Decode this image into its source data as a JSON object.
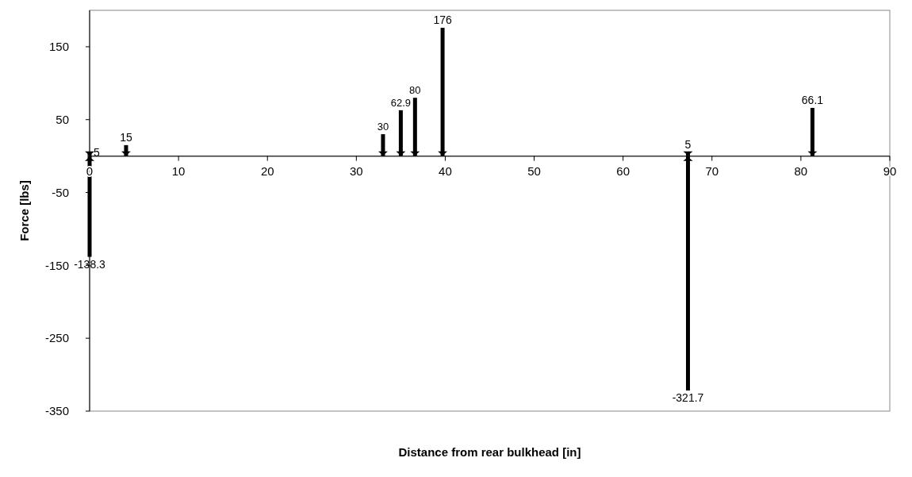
{
  "chart_data": {
    "type": "bar",
    "xlabel": "Distance from rear bulkhead [in]",
    "ylabel": "Force [lbs]",
    "series": [
      {
        "color": "#000000",
        "x": [
          0,
          4.1,
          33,
          35,
          36.6,
          39.7,
          67.3,
          81.3
        ],
        "values": [
          5,
          15,
          30,
          62.9,
          80,
          176,
          5,
          66.1
        ]
      },
      {
        "color": "#000000",
        "x": [
          0,
          67.3
        ],
        "values": [
          -138.3,
          -321.7
        ]
      }
    ],
    "data_labels": true,
    "grid": false,
    "xlim": [
      0,
      90
    ],
    "xticks": [
      0,
      10,
      20,
      30,
      40,
      50,
      60,
      70,
      80,
      90
    ],
    "ylim": [
      -350,
      200
    ],
    "yticks": [
      150,
      50,
      -50,
      -150,
      -250,
      -350
    ]
  }
}
